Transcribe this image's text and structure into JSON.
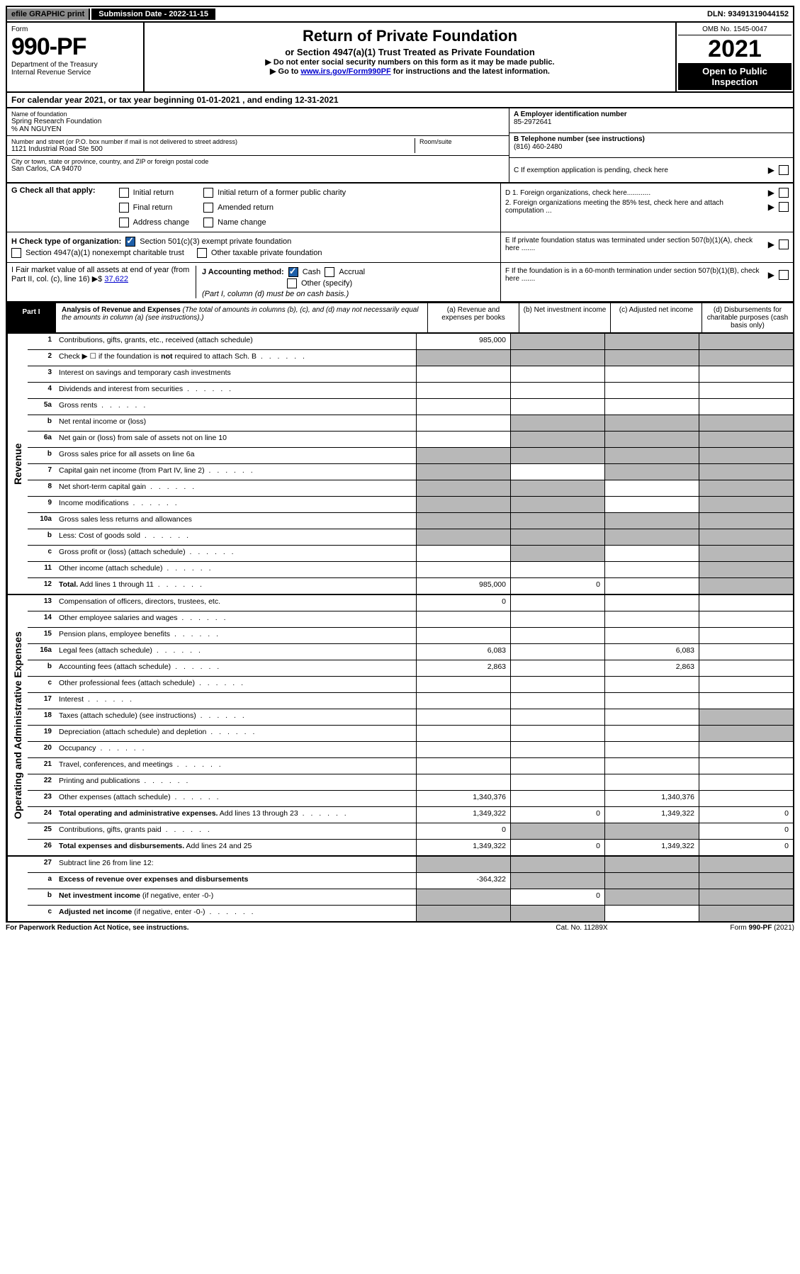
{
  "topbar": {
    "efile": "efile GRAPHIC print",
    "submission": "Submission Date - 2022-11-15",
    "dln": "DLN: 93491319044152"
  },
  "header": {
    "form_label": "Form",
    "form_num": "990-PF",
    "dept1": "Department of the Treasury",
    "dept2": "Internal Revenue Service",
    "title": "Return of Private Foundation",
    "subtitle": "or Section 4947(a)(1) Trust Treated as Private Foundation",
    "note1": "▶ Do not enter social security numbers on this form as it may be made public.",
    "note2_pre": "▶ Go to ",
    "note2_link": "www.irs.gov/Form990PF",
    "note2_post": " for instructions and the latest information.",
    "omb": "OMB No. 1545-0047",
    "year": "2021",
    "open1": "Open to Public",
    "open2": "Inspection"
  },
  "cal": "For calendar year 2021, or tax year beginning 01-01-2021                                    , and ending 12-31-2021",
  "info": {
    "name_label": "Name of foundation",
    "name": "Spring Research Foundation",
    "care": "% AN NGUYEN",
    "addr_label": "Number and street (or P.O. box number if mail is not delivered to street address)",
    "addr": "1121 Industrial Road Ste 500",
    "room_label": "Room/suite",
    "city_label": "City or town, state or province, country, and ZIP or foreign postal code",
    "city": "San Carlos, CA  94070",
    "a_label": "A Employer identification number",
    "a_val": "85-2972641",
    "b_label": "B Telephone number (see instructions)",
    "b_val": "(816) 460-2480",
    "c_label": "C If exemption application is pending, check here"
  },
  "g": {
    "label": "G Check all that apply:",
    "opts": [
      "Initial return",
      "Final return",
      "Address change",
      "Initial return of a former public charity",
      "Amended return",
      "Name change"
    ]
  },
  "h": {
    "label": "H Check type of organization:",
    "o1": "Section 501(c)(3) exempt private foundation",
    "o2": "Section 4947(a)(1) nonexempt charitable trust",
    "o3": "Other taxable private foundation"
  },
  "i": {
    "label": "I Fair market value of all assets at end of year (from Part II, col. (c), line 16)",
    "val": "37,622"
  },
  "j": {
    "label": "J Accounting method:",
    "o1": "Cash",
    "o2": "Accrual",
    "o3": "Other (specify)",
    "note": "(Part I, column (d) must be on cash basis.)"
  },
  "d": {
    "d1": "D 1. Foreign organizations, check here............",
    "d2": "2. Foreign organizations meeting the 85% test, check here and attach computation ...",
    "e": "E  If private foundation status was terminated under section 507(b)(1)(A), check here .......",
    "f": "F  If the foundation is in a 60-month termination under section 507(b)(1)(B), check here ......."
  },
  "part1": {
    "label": "Part I",
    "title": "Analysis of Revenue and Expenses",
    "title_note": " (The total of amounts in columns (b), (c), and (d) may not necessarily equal the amounts in column (a) (see instructions).)",
    "col_a": "(a)  Revenue and expenses per books",
    "col_b": "(b)  Net investment income",
    "col_c": "(c)  Adjusted net income",
    "col_d": "(d)  Disbursements for charitable purposes (cash basis only)"
  },
  "side_rev": "Revenue",
  "side_exp": "Operating and Administrative Expenses",
  "rows_rev": [
    {
      "n": "1",
      "d": "Contributions, gifts, grants, etc., received (attach schedule)",
      "a": "985,000",
      "shade_bcd": true
    },
    {
      "n": "2",
      "d": "Check ▶ ☐ if the foundation is <b>not</b> required to attach Sch. B",
      "dotted": true,
      "shade_all": true,
      "no_cols": true
    },
    {
      "n": "3",
      "d": "Interest on savings and temporary cash investments"
    },
    {
      "n": "4",
      "d": "Dividends and interest from securities",
      "dotted": true
    },
    {
      "n": "5a",
      "d": "Gross rents",
      "dotted": true
    },
    {
      "n": "b",
      "d": "Net rental income or (loss)",
      "shade_bcd": true,
      "shade_a": false,
      "under": true
    },
    {
      "n": "6a",
      "d": "Net gain or (loss) from sale of assets not on line 10",
      "shade_bcd": true
    },
    {
      "n": "b",
      "d": "Gross sales price for all assets on line 6a",
      "under": true,
      "shade_all": true
    },
    {
      "n": "7",
      "d": "Capital gain net income (from Part IV, line 2)",
      "dotted": true,
      "shade_a": true,
      "shade_cd": true
    },
    {
      "n": "8",
      "d": "Net short-term capital gain",
      "dotted": true,
      "shade_ab": true,
      "shade_d": true
    },
    {
      "n": "9",
      "d": "Income modifications",
      "dotted": true,
      "shade_ab": true,
      "shade_d": true
    },
    {
      "n": "10a",
      "d": "Gross sales less returns and allowances",
      "under": true,
      "shade_all": true
    },
    {
      "n": "b",
      "d": "Less: Cost of goods sold",
      "dotted": true,
      "under": true,
      "shade_all": true
    },
    {
      "n": "c",
      "d": "Gross profit or (loss) (attach schedule)",
      "dotted": true,
      "shade_b": true,
      "shade_d": true
    },
    {
      "n": "11",
      "d": "Other income (attach schedule)",
      "dotted": true,
      "shade_d": true
    },
    {
      "n": "12",
      "d": "<b>Total.</b> Add lines 1 through 11",
      "dotted": true,
      "a": "985,000",
      "b": "0",
      "shade_d": true
    }
  ],
  "rows_exp": [
    {
      "n": "13",
      "d": "Compensation of officers, directors, trustees, etc.",
      "a": "0"
    },
    {
      "n": "14",
      "d": "Other employee salaries and wages",
      "dotted": true
    },
    {
      "n": "15",
      "d": "Pension plans, employee benefits",
      "dotted": true
    },
    {
      "n": "16a",
      "d": "Legal fees (attach schedule)",
      "dotted": true,
      "a": "6,083",
      "c": "6,083"
    },
    {
      "n": "b",
      "d": "Accounting fees (attach schedule)",
      "dotted": true,
      "a": "2,863",
      "c": "2,863"
    },
    {
      "n": "c",
      "d": "Other professional fees (attach schedule)",
      "dotted": true
    },
    {
      "n": "17",
      "d": "Interest",
      "dotted": true
    },
    {
      "n": "18",
      "d": "Taxes (attach schedule) (see instructions)",
      "dotted": true,
      "shade_d": true
    },
    {
      "n": "19",
      "d": "Depreciation (attach schedule) and depletion",
      "dotted": true,
      "shade_d": true
    },
    {
      "n": "20",
      "d": "Occupancy",
      "dotted": true
    },
    {
      "n": "21",
      "d": "Travel, conferences, and meetings",
      "dotted": true
    },
    {
      "n": "22",
      "d": "Printing and publications",
      "dotted": true
    },
    {
      "n": "23",
      "d": "Other expenses (attach schedule)",
      "dotted": true,
      "a": "1,340,376",
      "c": "1,340,376"
    },
    {
      "n": "24",
      "d": "<b>Total operating and administrative expenses.</b> Add lines 13 through 23",
      "dotted": true,
      "a": "1,349,322",
      "b": "0",
      "c": "1,349,322",
      "dd": "0"
    },
    {
      "n": "25",
      "d": "Contributions, gifts, grants paid",
      "dotted": true,
      "a": "0",
      "shade_bc": true,
      "dd": "0"
    },
    {
      "n": "26",
      "d": "<b>Total expenses and disbursements.</b> Add lines 24 and 25",
      "a": "1,349,322",
      "b": "0",
      "c": "1,349,322",
      "dd": "0"
    }
  ],
  "rows_bot": [
    {
      "n": "27",
      "d": "Subtract line 26 from line 12:",
      "shade_all": true
    },
    {
      "n": "a",
      "d": "<b>Excess of revenue over expenses and disbursements</b>",
      "a": "-364,322",
      "shade_bcd": true
    },
    {
      "n": "b",
      "d": "<b>Net investment income</b> (if negative, enter -0-)",
      "shade_a": true,
      "b": "0",
      "shade_cd": true
    },
    {
      "n": "c",
      "d": "<b>Adjusted net income</b> (if negative, enter -0-)",
      "dotted": true,
      "shade_ab": true,
      "shade_d": true
    }
  ],
  "footer": {
    "left": "For Paperwork Reduction Act Notice, see instructions.",
    "center": "Cat. No. 11289X",
    "right": "Form 990-PF (2021)"
  }
}
